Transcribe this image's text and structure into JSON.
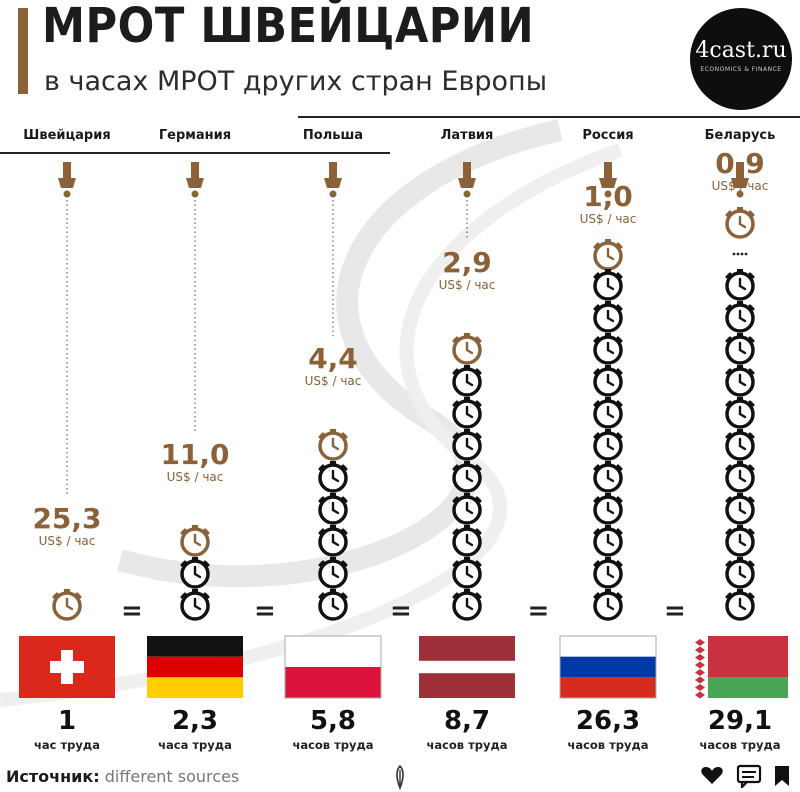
{
  "title": "МРОТ ШВЕЙЦАРИИ",
  "subtitle": "в часах МРОТ других стран Европы",
  "logo": {
    "name": "4cast.ru",
    "tagline": "ECONOMICS & FINANCE"
  },
  "equals_sign": "=",
  "colors": {
    "accent": "#8a6139",
    "dark": "#111111"
  },
  "chart_data": {
    "type": "bar",
    "title": "МРОТ ШВЕЙЦАРИИ",
    "subtitle": "в часах МРОТ других стран Европы",
    "categories": [
      "Швейцария",
      "Германия",
      "Польша",
      "Латвия",
      "Россия",
      "Беларусь"
    ],
    "wage_labels": [
      "25,3",
      "11,0",
      "4,4",
      "2,9",
      "1,0",
      "0,9"
    ],
    "wage_unit": "US$ / час",
    "series": [
      {
        "values": [
          25.3,
          11.0,
          4.4,
          2.9,
          1.0,
          0.9
        ]
      },
      {
        "values": [
          1,
          2.3,
          5.8,
          8.7,
          26.3,
          29.1
        ]
      }
    ],
    "hours_labels": [
      "1",
      "2,3",
      "5,8",
      "8,7",
      "26,3",
      "29,1"
    ],
    "hours_units": [
      "час труда",
      "часа труда",
      "часов труда",
      "часов труда",
      "часов труда",
      "часов труда"
    ],
    "clocks_drawn": [
      1,
      3,
      6,
      9,
      11,
      11
    ],
    "ellipsis_above_clocks": [
      false,
      false,
      false,
      false,
      true,
      true
    ],
    "flags": [
      "switzerland-flag",
      "germany-flag",
      "poland-flag",
      "latvia-flag",
      "russia-flag",
      "belarus-flag"
    ]
  },
  "source": {
    "label": "Источник:",
    "value": "different sources"
  },
  "footer_icons": [
    "heart-icon",
    "comment-icon",
    "bookmark-icon"
  ]
}
